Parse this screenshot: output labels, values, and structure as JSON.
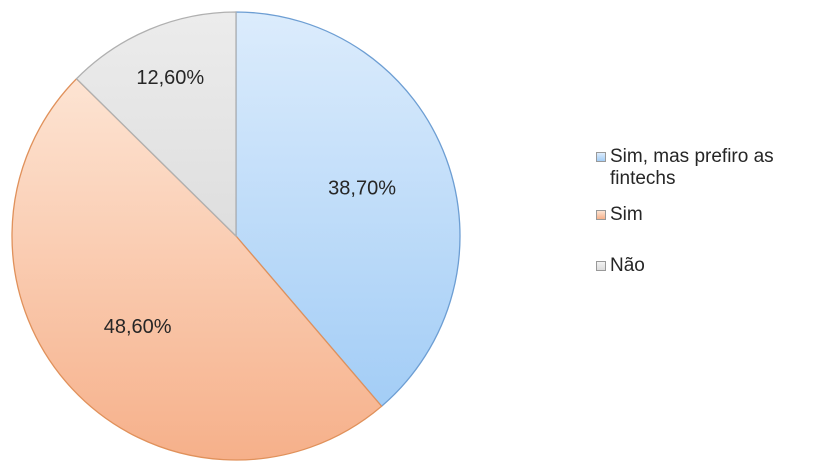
{
  "chart_data": {
    "type": "pie",
    "title": "",
    "legend_position": "right",
    "series": [
      {
        "slices": [
          {
            "label": "Sim, mas prefiro as fintechs",
            "value": 38.7,
            "value_label": "38,70%",
            "color": "#aed3f7",
            "edge": "#6d9ed3"
          },
          {
            "label": "Sim",
            "value": 48.6,
            "value_label": "48,60%",
            "color": "#f8c09c",
            "edge": "#e0915b"
          },
          {
            "label": "Não",
            "value": 12.6,
            "value_label": "12,60%",
            "color": "#e6e6e6",
            "edge": "#b0b0b0"
          }
        ]
      }
    ]
  }
}
